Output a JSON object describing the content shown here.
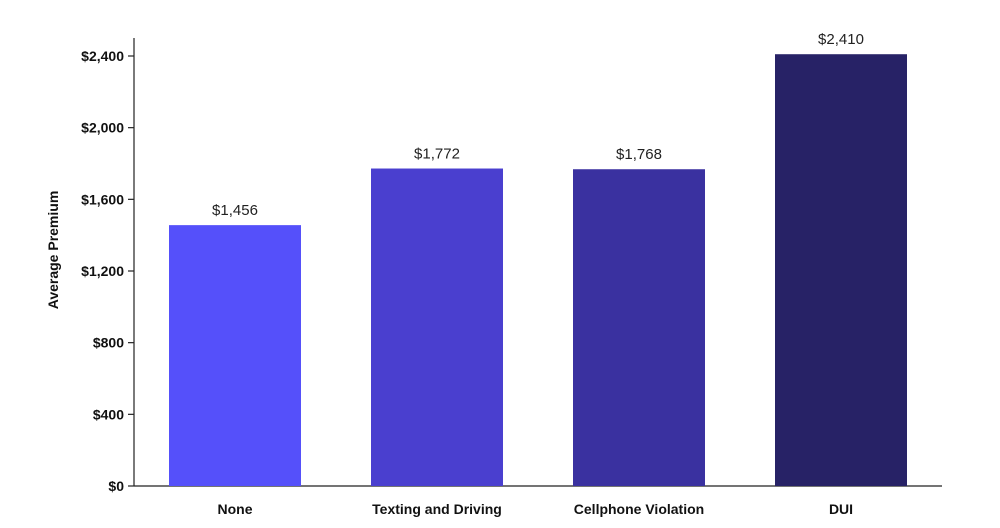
{
  "chart_data": {
    "type": "bar",
    "title": "",
    "xlabel": "",
    "ylabel": "Average Premium",
    "categories": [
      "None",
      "Texting and Driving",
      "Cellphone Violation",
      "DUI"
    ],
    "values": [
      1456,
      1772,
      1768,
      2410
    ],
    "data_labels": [
      "$1,456",
      "$1,772",
      "$1,768",
      "$2,410"
    ],
    "bar_colors": [
      "#5550fa",
      "#4a3fcf",
      "#3a31a0",
      "#272266"
    ],
    "ylim": [
      0,
      2400
    ],
    "yticks": [
      0,
      400,
      800,
      1200,
      1600,
      2000,
      2400
    ],
    "ytick_labels": [
      "$0",
      "$400",
      "$800",
      "$1,200",
      "$1,600",
      "$2,000",
      "$2,400"
    ],
    "grid": false,
    "legend": "none"
  }
}
